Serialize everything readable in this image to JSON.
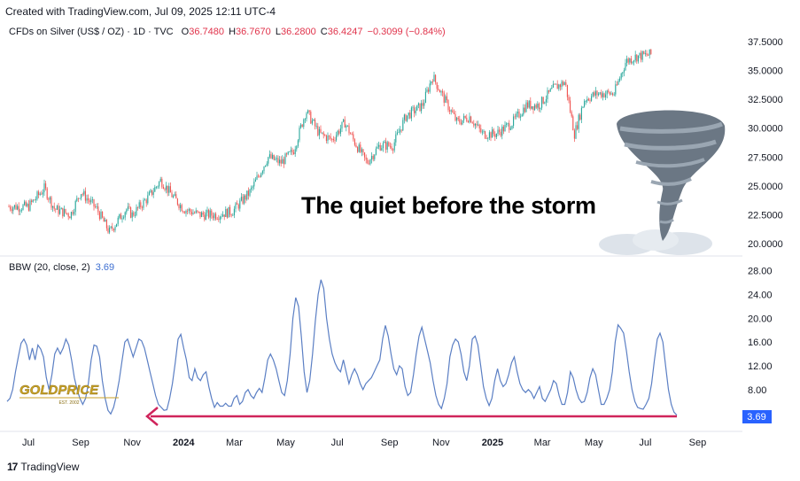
{
  "header": {
    "created_text": "Created with TradingView.com, Jul 09, 2025 12:11 UTC-4"
  },
  "legend": {
    "symbol_text": "CFDs on Silver (US$ / OZ) · 1D · TVC",
    "open_label": "O",
    "open_value": "36.7480",
    "high_label": "H",
    "high_value": "36.7670",
    "low_label": "L",
    "low_value": "36.2800",
    "close_label": "C",
    "close_value": "36.4247",
    "change_value": "−0.3099 (−0.84%)"
  },
  "headline": "The quiet before the storm",
  "bbw": {
    "label": "BBW (20, close, 2)",
    "value": "3.69",
    "value_badge": "3.69"
  },
  "logo": {
    "brand_text": "GOLDPRICE",
    "est_text": "EST. 2002"
  },
  "footer": {
    "brand": "TradingView"
  },
  "colors": {
    "up": "#26a69a",
    "down": "#ef5350",
    "bbw_line": "#5b7fc4",
    "arrow": "#d0245b",
    "badge": "#2962ff"
  },
  "icons": {
    "tornado": "tornado-icon",
    "tv_logo": "tradingview-logo-icon"
  },
  "chart_data": [
    {
      "type": "candlestick",
      "title": "CFDs on Silver (US$ / OZ)",
      "y_ticks": [
        "37.5000",
        "35.0000",
        "32.5000",
        "30.0000",
        "27.5000",
        "25.0000",
        "22.5000",
        "20.0000"
      ],
      "ylim": [
        19.8,
        38.0
      ],
      "x_ticks": [
        "Jul",
        "Sep",
        "Nov",
        "2024",
        "Mar",
        "May",
        "Jul",
        "Sep",
        "Nov",
        "2025",
        "Mar",
        "May",
        "Jul",
        "Sep"
      ],
      "approx_close_path": [
        [
          "2023-07",
          23.2
        ],
        [
          "2023-07-20",
          24.8
        ],
        [
          "2023-08",
          23.0
        ],
        [
          "2023-08-20",
          22.5
        ],
        [
          "2023-09",
          24.5
        ],
        [
          "2023-09-20",
          23.0
        ],
        [
          "2023-10-05",
          21.0
        ],
        [
          "2023-10-25",
          23.0
        ],
        [
          "2023-11",
          22.5
        ],
        [
          "2023-11-20",
          24.0
        ],
        [
          "2023-12-05",
          25.5
        ],
        [
          "2023-12-20",
          24.0
        ],
        [
          "2024-01",
          23.0
        ],
        [
          "2024-01-20",
          22.5
        ],
        [
          "2024-02-10",
          22.5
        ],
        [
          "2024-02-28",
          22.8
        ],
        [
          "2024-03-20",
          24.5
        ],
        [
          "2024-04-10",
          27.5
        ],
        [
          "2024-04-25",
          27.0
        ],
        [
          "2024-05-10",
          28.0
        ],
        [
          "2024-05-25",
          31.5
        ],
        [
          "2024-06-10",
          29.5
        ],
        [
          "2024-06-25",
          29.0
        ],
        [
          "2024-07-10",
          30.5
        ],
        [
          "2024-07-20",
          29.0
        ],
        [
          "2024-08-05",
          27.0
        ],
        [
          "2024-08-20",
          28.5
        ],
        [
          "2024-09-05",
          28.5
        ],
        [
          "2024-09-20",
          31.0
        ],
        [
          "2024-10-10",
          32.0
        ],
        [
          "2024-10-22",
          34.5
        ],
        [
          "2024-11-05",
          32.5
        ],
        [
          "2024-11-20",
          30.5
        ],
        [
          "2024-12-05",
          31.0
        ],
        [
          "2024-12-20",
          29.5
        ],
        [
          "2025-01-05",
          29.5
        ],
        [
          "2025-01-25",
          30.5
        ],
        [
          "2025-02-10",
          32.0
        ],
        [
          "2025-02-25",
          32.0
        ],
        [
          "2025-03-15",
          33.5
        ],
        [
          "2025-03-28",
          34.0
        ],
        [
          "2025-04-08",
          29.5
        ],
        [
          "2025-04-20",
          32.5
        ],
        [
          "2025-05-05",
          33.0
        ],
        [
          "2025-05-25",
          33.0
        ],
        [
          "2025-06-08",
          35.8
        ],
        [
          "2025-06-20",
          36.2
        ],
        [
          "2025-07-08",
          36.4
        ]
      ],
      "annotations": [
        "The quiet before the storm"
      ]
    },
    {
      "type": "line",
      "title": "BBW (20, close, 2)",
      "y_ticks": [
        "28.00",
        "24.00",
        "20.00",
        "16.00",
        "12.00",
        "8.00"
      ],
      "ylim": [
        2.0,
        29.0
      ],
      "last_value": 3.69,
      "series": [
        {
          "values": [
            6.0,
            6.5,
            8,
            11,
            13.5,
            15.8,
            16.5,
            15.5,
            13,
            15,
            13,
            15.5,
            14.8,
            13.5,
            10,
            8,
            10.5,
            14,
            15,
            14,
            15,
            16.5,
            15.5,
            13,
            10,
            8,
            6.5,
            5.5,
            6.5,
            9,
            13,
            15.5,
            15.3,
            13.5,
            9.5,
            6.5,
            4.5,
            3.9,
            5,
            7,
            9.5,
            12.8,
            16,
            16.5,
            15,
            13.5,
            15,
            16.5,
            16.2,
            15,
            13,
            11,
            9,
            7,
            5.5,
            5,
            4.5,
            4.6,
            6.5,
            9,
            12.5,
            16.5,
            17.3,
            15,
            13,
            10,
            9.5,
            11.5,
            10,
            9.5,
            10.5,
            11,
            8.5,
            6.5,
            5,
            5.8,
            5.2,
            5.2,
            5.7,
            5.2,
            5.2,
            6.5,
            7,
            5.5,
            6,
            7.5,
            8,
            7,
            6.5,
            7.5,
            8.2,
            7.5,
            10,
            13,
            14,
            13,
            11.5,
            9.5,
            7.5,
            7,
            9.5,
            14,
            20,
            23.5,
            22,
            17,
            11,
            7.5,
            9.5,
            14,
            19.5,
            24,
            26.5,
            25,
            20,
            16.5,
            14,
            12.5,
            11.5,
            11,
            13,
            11,
            9,
            10.5,
            11.5,
            10.5,
            9,
            8,
            9,
            9.5,
            10,
            11,
            12,
            13,
            16.5,
            18.8,
            17,
            14,
            11.5,
            10.5,
            12,
            11.5,
            8.5,
            7,
            7.5,
            10.5,
            14,
            17,
            18.5,
            16.5,
            14.5,
            12.5,
            9.5,
            7,
            5.5,
            4.8,
            6.5,
            9,
            13.5,
            15.5,
            16.5,
            16,
            14,
            11,
            9.5,
            12,
            16.5,
            17,
            15.5,
            12,
            8.5,
            6.5,
            5.3,
            6.5,
            9.5,
            11.5,
            9.5,
            8.5,
            9,
            10.5,
            12.5,
            13.5,
            11,
            9,
            8,
            7.5,
            8,
            7.5,
            6.5,
            7.5,
            8.5,
            6.5,
            6,
            7,
            8,
            9.5,
            9,
            7,
            5.5,
            5.5,
            7.5,
            11,
            10,
            8,
            6.5,
            5.8,
            6,
            7.5,
            10,
            11.5,
            10.5,
            8,
            5.5,
            5.5,
            6.5,
            8,
            11,
            16,
            18.9,
            18.3,
            17.5,
            14.5,
            11,
            8,
            6,
            5,
            4.8,
            4.7,
            5.5,
            6.5,
            9,
            13,
            16.5,
            17.5,
            16,
            12,
            8,
            5.5,
            4.2,
            3.69
          ]
        }
      ],
      "annotations": [
        "arrow pointing to November 2023 low"
      ]
    }
  ]
}
